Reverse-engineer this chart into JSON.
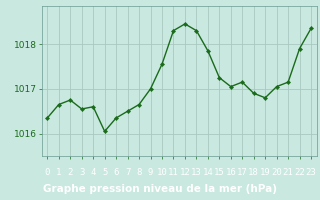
{
  "x": [
    0,
    1,
    2,
    3,
    4,
    5,
    6,
    7,
    8,
    9,
    10,
    11,
    12,
    13,
    14,
    15,
    16,
    17,
    18,
    19,
    20,
    21,
    22,
    23
  ],
  "y": [
    1016.35,
    1016.65,
    1016.75,
    1016.55,
    1016.6,
    1016.05,
    1016.35,
    1016.5,
    1016.65,
    1017.0,
    1017.55,
    1018.3,
    1018.45,
    1018.3,
    1017.85,
    1017.25,
    1017.05,
    1017.15,
    1016.9,
    1016.8,
    1017.05,
    1017.15,
    1017.9,
    1018.35
  ],
  "line_color": "#1a6b1a",
  "marker_color": "#1a6b1a",
  "bg_color": "#c8e8e0",
  "plot_bg_color": "#c8e8e0",
  "grid_color": "#a8c8c0",
  "axis_color": "#1a6b1a",
  "footer_bg": "#2a6a2a",
  "footer_text_color": "#ffffff",
  "xlabel": "Graphe pression niveau de la mer (hPa)",
  "ylim": [
    1015.5,
    1018.85
  ],
  "yticks": [
    1016,
    1017,
    1018
  ],
  "xtick_labels": [
    "0",
    "1",
    "2",
    "3",
    "4",
    "5",
    "6",
    "7",
    "8",
    "9",
    "10",
    "11",
    "12",
    "13",
    "14",
    "15",
    "16",
    "17",
    "18",
    "19",
    "20",
    "21",
    "22",
    "23"
  ],
  "tick_fontsize": 6.5,
  "xlabel_fontsize": 7.5
}
